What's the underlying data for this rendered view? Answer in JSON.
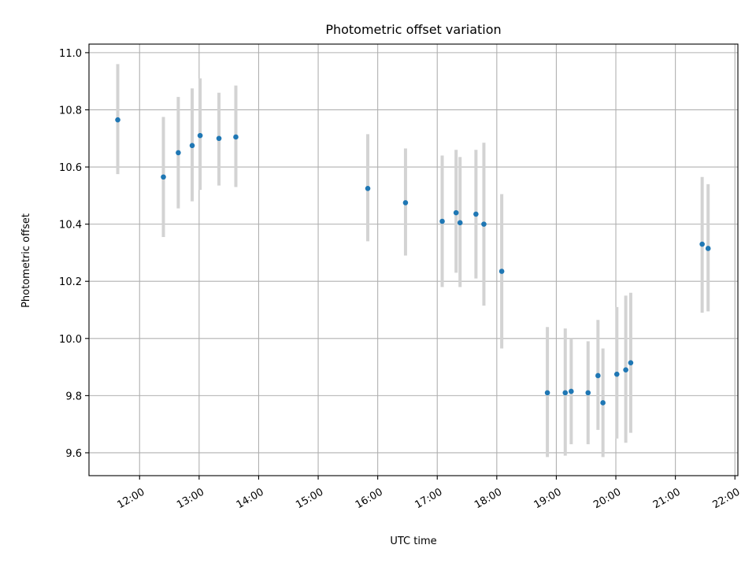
{
  "chart_data": {
    "type": "scatter",
    "title": "Photometric offset variation",
    "xlabel": "UTC time",
    "ylabel": "Photometric offset",
    "grid": true,
    "xlim": [
      "11:09",
      "22:03"
    ],
    "ylim": [
      9.52,
      11.03
    ],
    "x_ticks": [
      "12:00",
      "13:00",
      "14:00",
      "15:00",
      "16:00",
      "17:00",
      "18:00",
      "19:00",
      "20:00",
      "21:00",
      "22:00"
    ],
    "y_ticks": [
      9.6,
      9.8,
      10.0,
      10.2,
      10.4,
      10.6,
      10.8,
      11.0
    ],
    "y_tick_labels": [
      "9.6",
      "9.8",
      "10.0",
      "10.2",
      "10.4",
      "10.6",
      "10.8",
      "11.0"
    ],
    "colors": {
      "points": "#1f77b4",
      "errorbars": "#d3d3d3",
      "grid": "#b0b0b0"
    },
    "points": [
      {
        "time": "11:38",
        "y": 10.765,
        "err_low": 10.575,
        "err_high": 10.96
      },
      {
        "time": "12:24",
        "y": 10.565,
        "err_low": 10.355,
        "err_high": 10.775
      },
      {
        "time": "12:39",
        "y": 10.65,
        "err_low": 10.455,
        "err_high": 10.845
      },
      {
        "time": "12:53",
        "y": 10.675,
        "err_low": 10.48,
        "err_high": 10.875
      },
      {
        "time": "13:01",
        "y": 10.71,
        "err_low": 10.52,
        "err_high": 10.91
      },
      {
        "time": "13:20",
        "y": 10.7,
        "err_low": 10.535,
        "err_high": 10.86
      },
      {
        "time": "13:37",
        "y": 10.705,
        "err_low": 10.53,
        "err_high": 10.885
      },
      {
        "time": "15:50",
        "y": 10.525,
        "err_low": 10.34,
        "err_high": 10.715
      },
      {
        "time": "16:28",
        "y": 10.475,
        "err_low": 10.29,
        "err_high": 10.665
      },
      {
        "time": "17:05",
        "y": 10.41,
        "err_low": 10.18,
        "err_high": 10.64
      },
      {
        "time": "17:19",
        "y": 10.44,
        "err_low": 10.23,
        "err_high": 10.66
      },
      {
        "time": "17:23",
        "y": 10.405,
        "err_low": 10.18,
        "err_high": 10.635
      },
      {
        "time": "17:39",
        "y": 10.435,
        "err_low": 10.21,
        "err_high": 10.66
      },
      {
        "time": "17:47",
        "y": 10.4,
        "err_low": 10.115,
        "err_high": 10.685
      },
      {
        "time": "18:05",
        "y": 10.235,
        "err_low": 9.965,
        "err_high": 10.505
      },
      {
        "time": "18:51",
        "y": 9.81,
        "err_low": 9.585,
        "err_high": 10.04
      },
      {
        "time": "19:09",
        "y": 9.81,
        "err_low": 9.59,
        "err_high": 10.035
      },
      {
        "time": "19:15",
        "y": 9.815,
        "err_low": 9.63,
        "err_high": 10.0
      },
      {
        "time": "19:32",
        "y": 9.81,
        "err_low": 9.63,
        "err_high": 9.99
      },
      {
        "time": "19:42",
        "y": 9.87,
        "err_low": 9.68,
        "err_high": 10.065
      },
      {
        "time": "19:47",
        "y": 9.775,
        "err_low": 9.585,
        "err_high": 9.965
      },
      {
        "time": "20:01",
        "y": 9.875,
        "err_low": 9.65,
        "err_high": 10.11
      },
      {
        "time": "20:10",
        "y": 9.89,
        "err_low": 9.635,
        "err_high": 10.15
      },
      {
        "time": "20:15",
        "y": 9.915,
        "err_low": 9.67,
        "err_high": 10.16
      },
      {
        "time": "21:27",
        "y": 10.33,
        "err_low": 10.09,
        "err_high": 10.565
      },
      {
        "time": "21:33",
        "y": 10.315,
        "err_low": 10.095,
        "err_high": 10.54
      }
    ]
  }
}
